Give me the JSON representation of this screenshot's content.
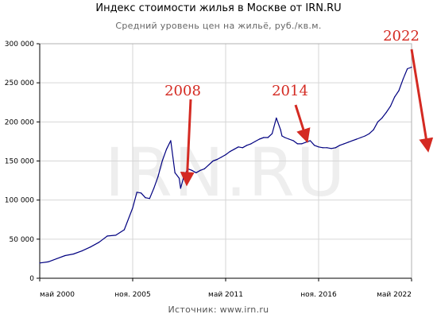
{
  "chart_data": {
    "type": "line",
    "title": "Индекс стоимости жилья в Москве от IRN.RU",
    "subtitle": "Средний уровень цен на жильё, руб./кв.м.",
    "source": "Источник: www.irn.ru",
    "watermark": "IRN.RU",
    "xlabel": "",
    "ylabel": "",
    "xlim": [
      "2000-05",
      "2022-05"
    ],
    "ylim": [
      0,
      300000
    ],
    "y_ticks": [
      0,
      50000,
      100000,
      150000,
      200000,
      250000,
      300000
    ],
    "y_tick_labels": [
      "0",
      "50 000",
      "100 000",
      "150 000",
      "200 000",
      "250 000",
      "300 000"
    ],
    "x_ticks": [
      {
        "date": "2000-05",
        "label": "май 2000"
      },
      {
        "date": "2005-11",
        "label": "ноя. 2005"
      },
      {
        "date": "2011-05",
        "label": "май 2011"
      },
      {
        "date": "2016-11",
        "label": "ноя. 2016"
      },
      {
        "date": "2022-05",
        "label": "май 2022"
      }
    ],
    "grid": true,
    "line_color": "#000080",
    "annotation_color": "#d42a22",
    "series": [
      {
        "x": [
          "2000-05",
          "2000-11",
          "2001-05",
          "2001-11",
          "2002-05",
          "2002-11",
          "2003-05",
          "2003-11",
          "2004-05",
          "2004-11",
          "2005-05",
          "2005-11",
          "2006-02",
          "2006-05",
          "2006-08",
          "2006-11",
          "2007-02",
          "2007-05",
          "2007-08",
          "2007-11",
          "2008-02",
          "2008-05",
          "2008-08",
          "2008-09",
          "2008-11",
          "2009-02",
          "2009-05",
          "2009-08",
          "2009-11",
          "2010-02",
          "2010-05",
          "2010-08",
          "2010-11",
          "2011-02",
          "2011-05",
          "2011-08",
          "2011-11",
          "2012-02",
          "2012-05",
          "2012-08",
          "2012-11",
          "2013-02",
          "2013-05",
          "2013-08",
          "2013-11",
          "2014-02",
          "2014-05",
          "2014-08",
          "2014-09",
          "2014-11",
          "2015-02",
          "2015-05",
          "2015-08",
          "2015-11",
          "2016-02",
          "2016-05",
          "2016-08",
          "2016-11",
          "2017-02",
          "2017-05",
          "2017-08",
          "2017-11",
          "2018-02",
          "2018-05",
          "2018-08",
          "2018-11",
          "2019-02",
          "2019-05",
          "2019-08",
          "2019-11",
          "2020-02",
          "2020-05",
          "2020-08",
          "2020-11",
          "2021-02",
          "2021-05",
          "2021-08",
          "2021-11",
          "2022-02",
          "2022-05"
        ],
        "y": [
          19500,
          21000,
          25000,
          29000,
          31000,
          35000,
          40000,
          46000,
          54000,
          55000,
          62000,
          90000,
          110000,
          109000,
          103000,
          102000,
          115000,
          130000,
          150000,
          165000,
          176000,
          135000,
          128000,
          115000,
          128000,
          140000,
          138000,
          135000,
          138000,
          140000,
          145000,
          150000,
          152000,
          155000,
          158000,
          162000,
          165000,
          168000,
          167000,
          170000,
          172000,
          175000,
          178000,
          180000,
          180000,
          185000,
          205000,
          190000,
          182000,
          180000,
          178000,
          176000,
          172000,
          172000,
          174000,
          176000,
          170000,
          168000,
          167000,
          167000,
          166000,
          167000,
          170000,
          172000,
          174000,
          176000,
          178000,
          180000,
          182000,
          185000,
          190000,
          200000,
          205000,
          212000,
          220000,
          232000,
          240000,
          255000,
          268000,
          270000
        ]
      }
    ],
    "annotations": [
      {
        "text": "2008",
        "points_to": "2008-09"
      },
      {
        "text": "2014",
        "points_to": "2016-02"
      },
      {
        "text": "2022",
        "points_to": "2022-05"
      }
    ]
  }
}
